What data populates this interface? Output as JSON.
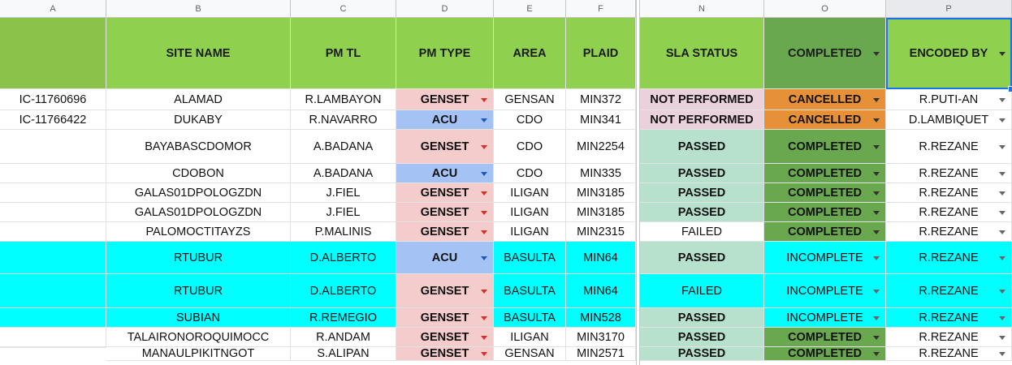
{
  "column_letters": [
    "A",
    "B",
    "C",
    "D",
    "E",
    "F",
    "N",
    "O",
    "P"
  ],
  "headers": [
    "",
    "SITE NAME",
    "PM TL",
    "PM TYPE",
    "AREA",
    "PLAID",
    "SLA STATUS",
    "COMPLETED",
    "ENCODED BY"
  ],
  "rows": [
    {
      "id": "IC-11760696",
      "site": "ALAMAD",
      "pmtl": "R.LAMBAYON",
      "pmtype": "GENSET",
      "area": "GENSAN",
      "plaid": "MIN372",
      "sla": "NOT PERFORMED",
      "completed": "CANCELLED",
      "encoded": "R.PUTI-AN"
    },
    {
      "id": "IC-11766422",
      "site": "DUKABY",
      "pmtl": "R.NAVARRO",
      "pmtype": "ACU",
      "area": "CDO",
      "plaid": "MIN341",
      "sla": "NOT PERFORMED",
      "completed": "CANCELLED",
      "encoded": "D.LAMBIQUET"
    },
    {
      "id": "",
      "site": "BAYABASCDOMOR",
      "pmtl": "A.BADANA",
      "pmtype": "GENSET",
      "area": "CDO",
      "plaid": "MIN2254",
      "sla": "PASSED",
      "completed": "COMPLETED",
      "encoded": "R.REZANE"
    },
    {
      "id": "",
      "site": "CDOBON",
      "pmtl": "A.BADANA",
      "pmtype": "ACU",
      "area": "CDO",
      "plaid": "MIN335",
      "sla": "PASSED",
      "completed": "COMPLETED",
      "encoded": "R.REZANE"
    },
    {
      "id": "",
      "site": "GALAS01DPOLOGZDN",
      "pmtl": "J.FIEL",
      "pmtype": "GENSET",
      "area": "ILIGAN",
      "plaid": "MIN3185",
      "sla": "PASSED",
      "completed": "COMPLETED",
      "encoded": "R.REZANE"
    },
    {
      "id": "",
      "site": "GALAS01DPOLOGZDN",
      "pmtl": "J.FIEL",
      "pmtype": "GENSET",
      "area": "ILIGAN",
      "plaid": "MIN3185",
      "sla": "PASSED",
      "completed": "COMPLETED",
      "encoded": "R.REZANE"
    },
    {
      "id": "",
      "site": "PALOMOCTITAYZS",
      "pmtl": "P.MALINIS",
      "pmtype": "GENSET",
      "area": "ILIGAN",
      "plaid": "MIN2315",
      "sla": "FAILED",
      "completed": "COMPLETED",
      "encoded": "R.REZANE"
    },
    {
      "id": "",
      "site": "RTUBUR",
      "pmtl": "D.ALBERTO",
      "pmtype": "ACU",
      "area": "BASULTA",
      "plaid": "MIN64",
      "sla": "PASSED",
      "completed": "INCOMPLETE",
      "encoded": "R.REZANE"
    },
    {
      "id": "",
      "site": "RTUBUR",
      "pmtl": "D.ALBERTO",
      "pmtype": "GENSET",
      "area": "BASULTA",
      "plaid": "MIN64",
      "sla": "FAILED",
      "completed": "INCOMPLETE",
      "encoded": "R.REZANE"
    },
    {
      "id": "",
      "site": "SUBIAN",
      "pmtl": "R.REMEGIO",
      "pmtype": "GENSET",
      "area": "BASULTA",
      "plaid": "MIN528",
      "sla": "PASSED",
      "completed": "INCOMPLETE",
      "encoded": "R.REZANE"
    },
    {
      "id": "",
      "site": "TALAIRONOROQUIMOCC",
      "pmtl": "R.ANDAM",
      "pmtype": "GENSET",
      "area": "ILIGAN",
      "plaid": "MIN3170",
      "sla": "PASSED",
      "completed": "COMPLETED",
      "encoded": "R.REZANE"
    },
    {
      "id": "",
      "site": "MANAULPIKITNGOT",
      "pmtl": "S.ALIPAN",
      "pmtype": "GENSET",
      "area": "GENSAN",
      "plaid": "MIN2571",
      "sla": "PASSED",
      "completed": "COMPLETED",
      "encoded": "R.REZANE"
    }
  ],
  "colors": {
    "header_green": "#8fd14f",
    "header_corner": "#8bc34a",
    "completed_header": "#6aa84f",
    "genset": "#f4cccc",
    "acu": "#a4c2f4",
    "passed": "#b7e1cd",
    "not_performed": "#ead1dc",
    "cancelled": "#e69138",
    "completed_cell": "#6aa84f",
    "highlight_row": "#00ffff",
    "selection_blue": "#1a73e8"
  },
  "icons": {
    "dropdown": "dropdown-arrow-icon"
  }
}
